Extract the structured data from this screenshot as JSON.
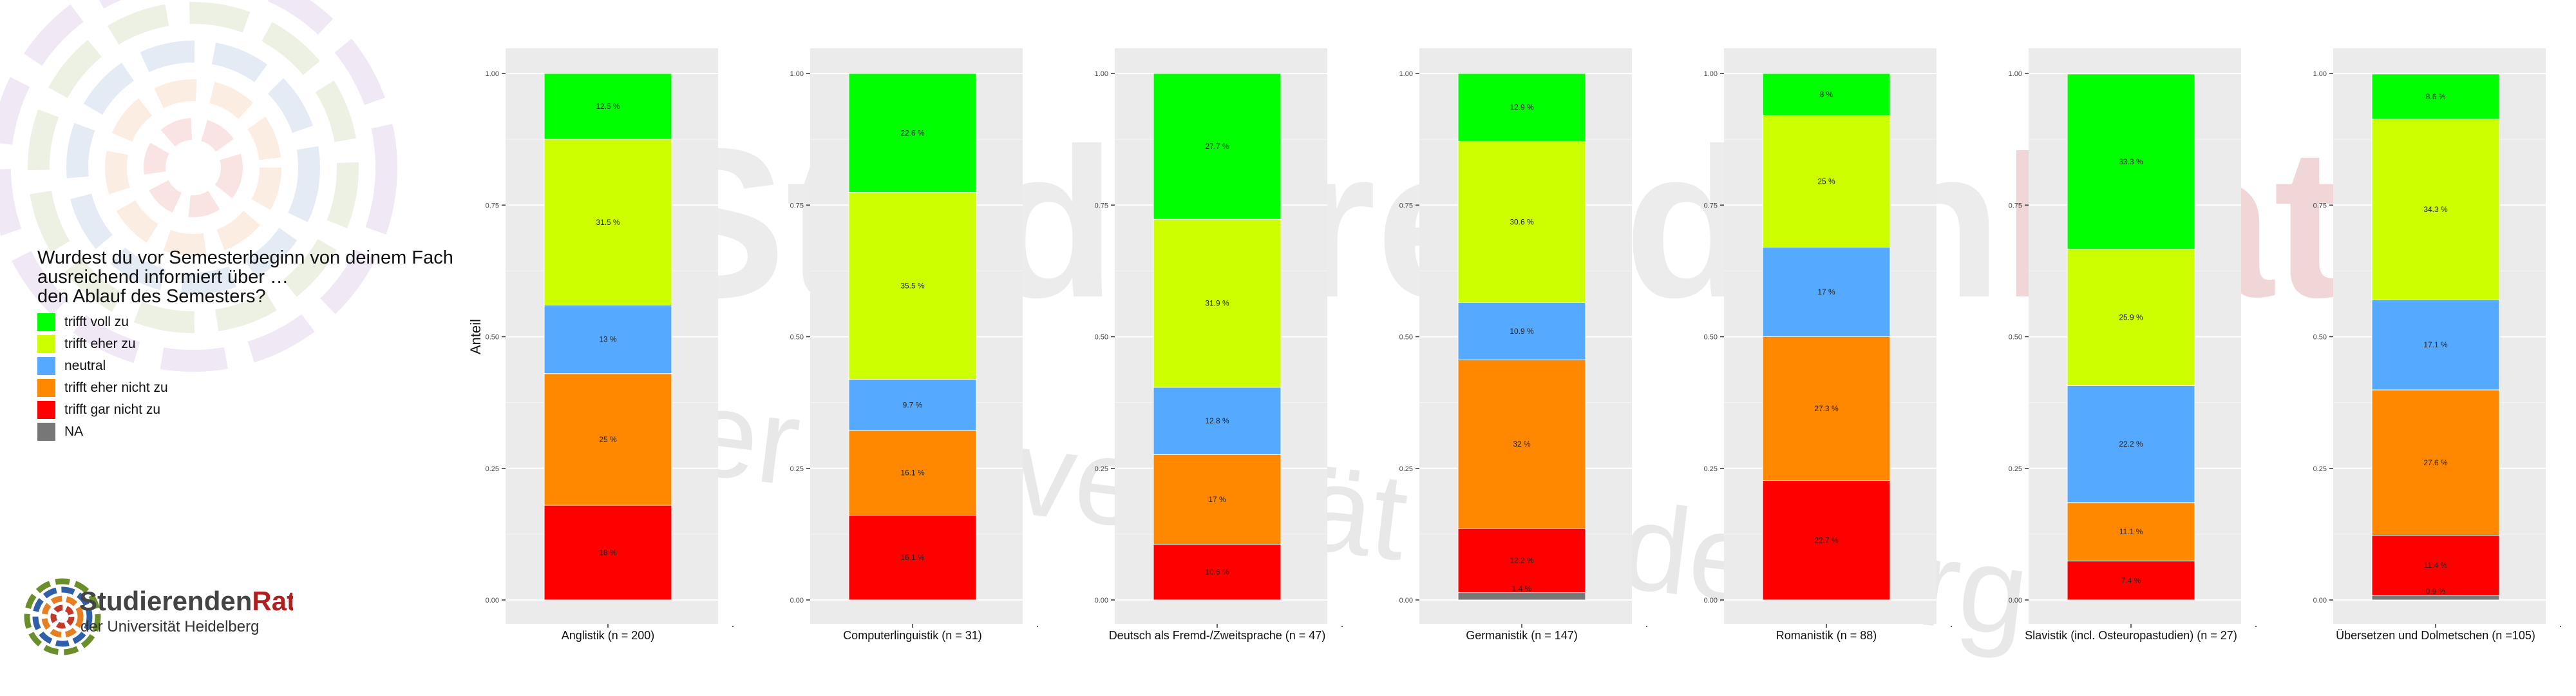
{
  "legend": {
    "title": "Wurdest du vor Semesterbeginn von deinem Fach\nausreichend informiert über …\nden Ablauf des Semesters?",
    "items": [
      {
        "label": "trifft voll zu",
        "color": "#00FF00"
      },
      {
        "label": "trifft eher zu",
        "color": "#CCFF00"
      },
      {
        "label": "neutral",
        "color": "#55AAFF"
      },
      {
        "label": "trifft eher nicht zu",
        "color": "#FF8800"
      },
      {
        "label": "trifft gar nicht zu",
        "color": "#FF0000"
      },
      {
        "label": "NA",
        "color": "#777777"
      }
    ]
  },
  "logo": {
    "name_part1": "Studierenden",
    "name_part2": "Rat",
    "subtitle": "der Universität Heidelberg"
  },
  "watermark": {
    "line1_part1": "Studierenden",
    "line1_part2": "Rat",
    "line2": "der Universität Heidelberg"
  },
  "chart_data": {
    "type": "bar",
    "stacked": true,
    "ylabel": "Anteil",
    "ylim": [
      0,
      1
    ],
    "yticks": [
      "0.00",
      "0.25",
      "0.50",
      "0.75",
      "1.00"
    ],
    "grid": true,
    "stack_order_bottom_to_top": [
      "NA",
      "trifft gar nicht zu",
      "trifft eher nicht zu",
      "neutral",
      "trifft eher zu",
      "trifft voll zu"
    ],
    "panels": [
      {
        "title": "Anglistik (n = 200)",
        "segments": [
          {
            "cat": "NA",
            "value": 0,
            "label": ""
          },
          {
            "cat": "trifft gar nicht zu",
            "value": 0.18,
            "label": "18 %"
          },
          {
            "cat": "trifft eher nicht zu",
            "value": 0.25,
            "label": "25 %"
          },
          {
            "cat": "neutral",
            "value": 0.13,
            "label": "13 %"
          },
          {
            "cat": "trifft eher zu",
            "value": 0.315,
            "label": "31.5 %"
          },
          {
            "cat": "trifft voll zu",
            "value": 0.125,
            "label": "12.5 %"
          }
        ]
      },
      {
        "title": "Computerlinguistik (n = 31)",
        "segments": [
          {
            "cat": "NA",
            "value": 0,
            "label": ""
          },
          {
            "cat": "trifft gar nicht zu",
            "value": 0.161,
            "label": "16.1 %"
          },
          {
            "cat": "trifft eher nicht zu",
            "value": 0.161,
            "label": "16.1 %"
          },
          {
            "cat": "neutral",
            "value": 0.097,
            "label": "9.7 %"
          },
          {
            "cat": "trifft eher zu",
            "value": 0.355,
            "label": "35.5 %"
          },
          {
            "cat": "trifft voll zu",
            "value": 0.226,
            "label": "22.6 %"
          }
        ]
      },
      {
        "title": "Deutsch als Fremd-/Zweitsprache (n = 47)",
        "segments": [
          {
            "cat": "NA",
            "value": 0,
            "label": ""
          },
          {
            "cat": "trifft gar nicht zu",
            "value": 0.106,
            "label": "10.6 %"
          },
          {
            "cat": "trifft eher nicht zu",
            "value": 0.17,
            "label": "17 %"
          },
          {
            "cat": "neutral",
            "value": 0.128,
            "label": "12.8 %"
          },
          {
            "cat": "trifft eher zu",
            "value": 0.319,
            "label": "31.9 %"
          },
          {
            "cat": "trifft voll zu",
            "value": 0.277,
            "label": "27.7 %"
          }
        ]
      },
      {
        "title": "Germanistik (n = 147)",
        "segments": [
          {
            "cat": "NA",
            "value": 0.014,
            "label": "1.4 %"
          },
          {
            "cat": "trifft gar nicht zu",
            "value": 0.122,
            "label": "12.2 %"
          },
          {
            "cat": "trifft eher nicht zu",
            "value": 0.32,
            "label": "32 %"
          },
          {
            "cat": "neutral",
            "value": 0.109,
            "label": "10.9 %"
          },
          {
            "cat": "trifft eher zu",
            "value": 0.306,
            "label": "30.6 %"
          },
          {
            "cat": "trifft voll zu",
            "value": 0.129,
            "label": "12.9 %"
          }
        ]
      },
      {
        "title": "Romanistik (n = 88)",
        "segments": [
          {
            "cat": "NA",
            "value": 0,
            "label": ""
          },
          {
            "cat": "trifft gar nicht zu",
            "value": 0.227,
            "label": "22.7 %"
          },
          {
            "cat": "trifft eher nicht zu",
            "value": 0.273,
            "label": "27.3 %"
          },
          {
            "cat": "neutral",
            "value": 0.17,
            "label": "17 %"
          },
          {
            "cat": "trifft eher zu",
            "value": 0.25,
            "label": "25 %"
          },
          {
            "cat": "trifft voll zu",
            "value": 0.08,
            "label": "8 %"
          }
        ]
      },
      {
        "title": "Slavistik (incl. Osteuropastudien) (n = 27)",
        "segments": [
          {
            "cat": "NA",
            "value": 0,
            "label": ""
          },
          {
            "cat": "trifft gar nicht zu",
            "value": 0.074,
            "label": "7.4 %"
          },
          {
            "cat": "trifft eher nicht zu",
            "value": 0.111,
            "label": "11.1 %"
          },
          {
            "cat": "neutral",
            "value": 0.222,
            "label": "22.2 %"
          },
          {
            "cat": "trifft eher zu",
            "value": 0.259,
            "label": "25.9 %"
          },
          {
            "cat": "trifft voll zu",
            "value": 0.333,
            "label": "33.3 %"
          }
        ]
      },
      {
        "title": "Übersetzen und Dolmetschen (n =105)",
        "segments": [
          {
            "cat": "NA",
            "value": 0.009,
            "label": "0.9 %"
          },
          {
            "cat": "trifft gar nicht zu",
            "value": 0.114,
            "label": "11.4 %"
          },
          {
            "cat": "trifft eher nicht zu",
            "value": 0.276,
            "label": "27.6 %"
          },
          {
            "cat": "neutral",
            "value": 0.171,
            "label": "17.1 %"
          },
          {
            "cat": "trifft eher zu",
            "value": 0.343,
            "label": "34.3 %"
          },
          {
            "cat": "trifft voll zu",
            "value": 0.086,
            "label": "8.6 %"
          }
        ]
      }
    ]
  }
}
